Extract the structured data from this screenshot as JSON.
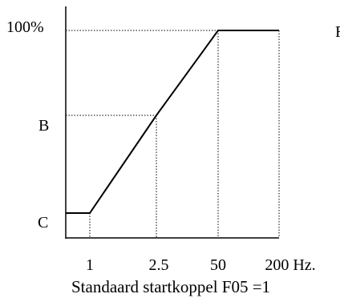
{
  "chart_data": {
    "type": "line",
    "caption": "Standaard startkoppel  F05 =1",
    "x_ticks": [
      "1",
      "2.5",
      "50",
      "200 Hz."
    ],
    "y_ticks": [
      "C",
      "B",
      "100%"
    ],
    "corner_mark": "F",
    "series": [
      {
        "points": [
          [
            "0",
            "C"
          ],
          [
            "1",
            "C"
          ],
          [
            "2.5",
            "B"
          ],
          [
            "50",
            "100%"
          ],
          [
            "200 Hz.",
            "100%"
          ]
        ]
      }
    ],
    "grid": false
  }
}
